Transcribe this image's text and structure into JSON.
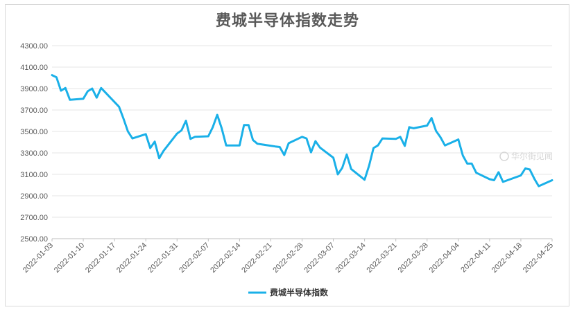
{
  "chart_data": {
    "type": "line",
    "title": "费城半导体指数走势",
    "ylim": [
      2500,
      4300
    ],
    "yticks": [
      "2500.00",
      "2700.00",
      "2900.00",
      "3100.00",
      "3300.00",
      "3500.00",
      "3700.00",
      "3900.00",
      "4100.00",
      "4300.00"
    ],
    "xticks": [
      "2022-01-03",
      "2022-01-10",
      "2022-01-17",
      "2022-01-24",
      "2022-01-31",
      "2022-02-07",
      "2022-02-14",
      "2022-02-21",
      "2022-02-28",
      "2022-03-07",
      "2022-03-14",
      "2022-03-21",
      "2022-03-28",
      "2022-04-04",
      "2022-04-11",
      "2022-04-18",
      "2022-04-25"
    ],
    "x_range": [
      "2022-01-03",
      "2022-04-25"
    ],
    "grid": "horizontal",
    "legend_position": "bottom",
    "series": [
      {
        "name": "费城半导体指数",
        "color": "#1ab0e8",
        "x": [
          "2022-01-03",
          "2022-01-04",
          "2022-01-05",
          "2022-01-06",
          "2022-01-07",
          "2022-01-08",
          "2022-01-10",
          "2022-01-11",
          "2022-01-12",
          "2022-01-13",
          "2022-01-14",
          "2022-01-18",
          "2022-01-19",
          "2022-01-20",
          "2022-01-21",
          "2022-01-24",
          "2022-01-25",
          "2022-01-26",
          "2022-01-27",
          "2022-01-28",
          "2022-01-31",
          "2022-02-01",
          "2022-02-02",
          "2022-02-03",
          "2022-02-04",
          "2022-02-07",
          "2022-02-08",
          "2022-02-09",
          "2022-02-10",
          "2022-02-11",
          "2022-02-14",
          "2022-02-15",
          "2022-02-16",
          "2022-02-17",
          "2022-02-18",
          "2022-02-22",
          "2022-02-23",
          "2022-02-24",
          "2022-02-25",
          "2022-02-28",
          "2022-03-01",
          "2022-03-02",
          "2022-03-03",
          "2022-03-04",
          "2022-03-07",
          "2022-03-08",
          "2022-03-09",
          "2022-03-10",
          "2022-03-11",
          "2022-03-14",
          "2022-03-15",
          "2022-03-16",
          "2022-03-17",
          "2022-03-18",
          "2022-03-21",
          "2022-03-22",
          "2022-03-23",
          "2022-03-24",
          "2022-03-25",
          "2022-03-28",
          "2022-03-29",
          "2022-03-30",
          "2022-03-31",
          "2022-04-01",
          "2022-04-04",
          "2022-04-05",
          "2022-04-06",
          "2022-04-07",
          "2022-04-08",
          "2022-04-11",
          "2022-04-12",
          "2022-04-13",
          "2022-04-14",
          "2022-04-18",
          "2022-04-19",
          "2022-04-20",
          "2022-04-21",
          "2022-04-22",
          "2022-04-25"
        ],
        "values": [
          4025,
          4005,
          3880,
          3905,
          3795,
          3798,
          3805,
          3875,
          3900,
          3815,
          3905,
          3730,
          3620,
          3500,
          3435,
          3475,
          3345,
          3405,
          3250,
          3320,
          3480,
          3510,
          3600,
          3430,
          3450,
          3455,
          3540,
          3655,
          3530,
          3370,
          3370,
          3560,
          3560,
          3420,
          3385,
          3360,
          3355,
          3280,
          3390,
          3450,
          3435,
          3305,
          3410,
          3350,
          3255,
          3100,
          3160,
          3285,
          3150,
          3050,
          3180,
          3345,
          3370,
          3435,
          3430,
          3450,
          3365,
          3540,
          3530,
          3555,
          3625,
          3505,
          3445,
          3370,
          3425,
          3275,
          3200,
          3200,
          3115,
          3055,
          3045,
          3120,
          3030,
          3090,
          3155,
          3145,
          3060,
          2990,
          3045
        ]
      }
    ]
  },
  "watermark": "华尔街见闻"
}
